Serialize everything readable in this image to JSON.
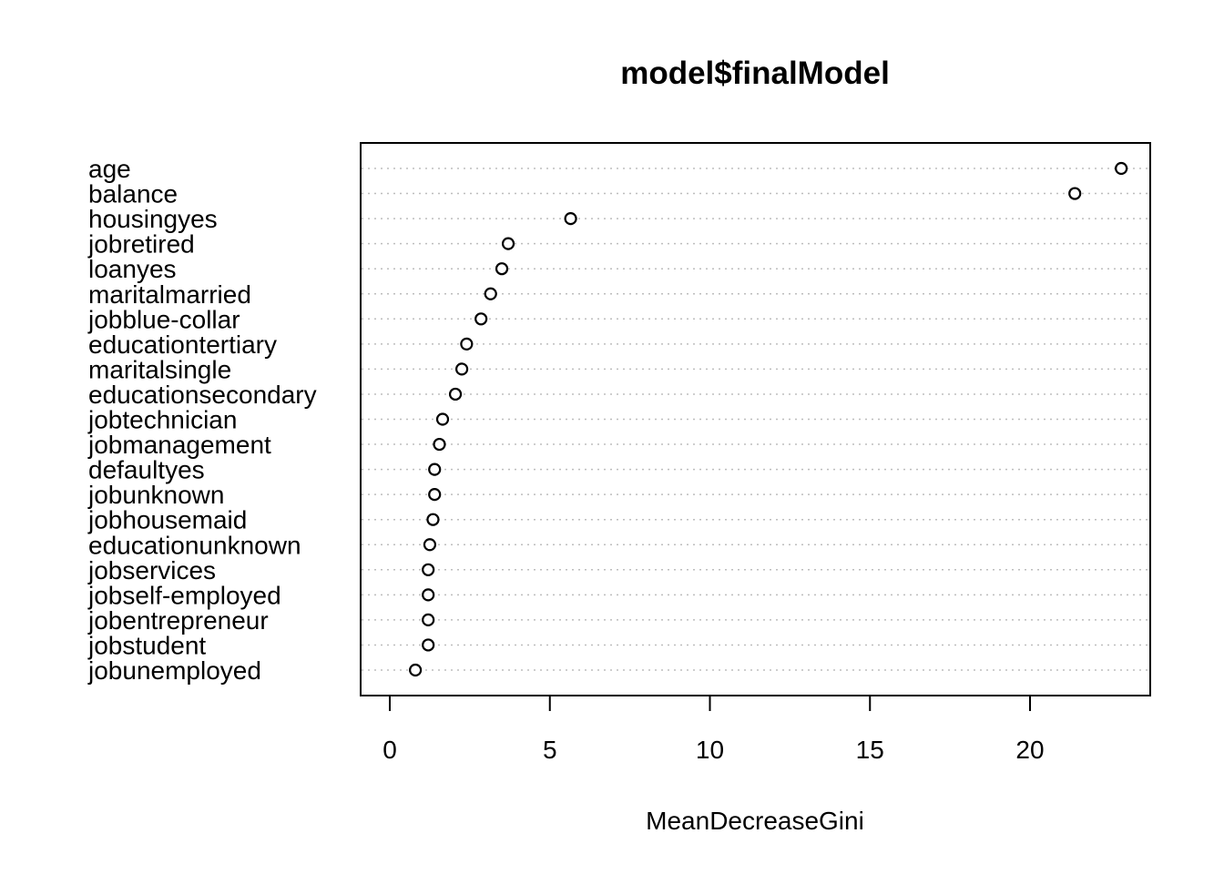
{
  "chart_data": {
    "type": "scatter",
    "subtype": "dotchart",
    "title": "model$finalModel",
    "xlabel": "MeanDecreaseGini",
    "ylabel": "",
    "xlim": [
      -0.9,
      23.7
    ],
    "xticks": [
      0,
      5,
      10,
      15,
      20
    ],
    "grid": "dotted horizontal lines per variable",
    "categories": [
      "age",
      "balance",
      "housingyes",
      "jobretired",
      "loanyes",
      "maritalmarried",
      "jobblue-collar",
      "educationtertiary",
      "maritalsingle",
      "educationsecondary",
      "jobtechnician",
      "jobmanagement",
      "defaultyes",
      "jobunknown",
      "jobhousemaid",
      "educationunknown",
      "jobservices",
      "jobself-employed",
      "jobentrepreneur",
      "jobstudent",
      "jobunemployed"
    ],
    "values": [
      22.85,
      21.4,
      5.65,
      3.7,
      3.5,
      3.15,
      2.85,
      2.4,
      2.25,
      2.05,
      1.65,
      1.55,
      1.4,
      1.4,
      1.35,
      1.25,
      1.2,
      1.2,
      1.2,
      1.2,
      0.8
    ]
  }
}
